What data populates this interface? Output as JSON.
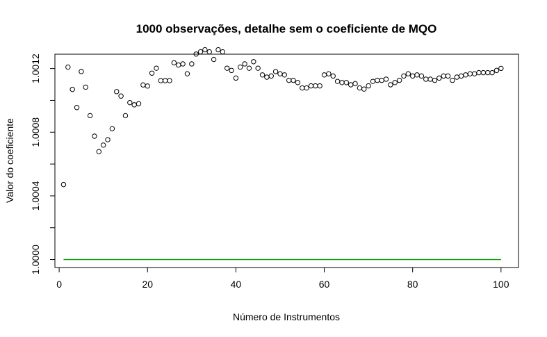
{
  "chart_data": {
    "type": "scatter",
    "title": "1000 observações, detalhe sem o coeficiente de MQO",
    "xlabel": "Número de Instrumentos",
    "ylabel": "Valor do coeficiente",
    "xlim": [
      -0.96,
      103.96
    ],
    "ylim": [
      0.99995,
      1.00129
    ],
    "x_ticks": [
      0,
      20,
      40,
      60,
      80,
      100
    ],
    "x_tick_labels": [
      "0",
      "20",
      "40",
      "60",
      "80",
      "100"
    ],
    "y_ticks": [
      1.0,
      1.0004,
      1.0008,
      1.0012
    ],
    "y_tick_labels": [
      "1.0000",
      "1.0004",
      "1.0008",
      "1.0012"
    ],
    "grid": false,
    "legend": "none",
    "series": [
      {
        "marker": "open-circle",
        "color": "#000000",
        "x": [
          1,
          2,
          3,
          4,
          5,
          6,
          7,
          8,
          9,
          10,
          11,
          12,
          13,
          14,
          15,
          16,
          17,
          18,
          19,
          20,
          21,
          22,
          23,
          24,
          25,
          26,
          27,
          28,
          29,
          30,
          31,
          32,
          33,
          34,
          35,
          36,
          37,
          38,
          39,
          40,
          41,
          42,
          43,
          44,
          45,
          46,
          47,
          48,
          49,
          50,
          51,
          52,
          53,
          54,
          55,
          56,
          57,
          58,
          59,
          60,
          61,
          62,
          63,
          64,
          65,
          66,
          67,
          68,
          69,
          70,
          71,
          72,
          73,
          74,
          75,
          76,
          77,
          78,
          79,
          80,
          81,
          82,
          83,
          84,
          85,
          86,
          87,
          88,
          89,
          90,
          91,
          92,
          93,
          94,
          95,
          96,
          97,
          98,
          99,
          100
        ],
        "y": [
          1.000471,
          1.001209,
          1.001069,
          1.000955,
          1.001181,
          1.001083,
          1.000904,
          1.000775,
          1.000678,
          1.000719,
          1.000753,
          1.000822,
          1.001055,
          1.001027,
          1.000904,
          1.000986,
          1.000972,
          1.000979,
          1.001097,
          1.00109,
          1.001171,
          1.001202,
          1.001124,
          1.001124,
          1.001124,
          1.001236,
          1.001222,
          1.001229,
          1.001167,
          1.001229,
          1.001291,
          1.001305,
          1.001318,
          1.001305,
          1.001257,
          1.001318,
          1.001305,
          1.001202,
          1.001188,
          1.00114,
          1.001209,
          1.001229,
          1.001202,
          1.001243,
          1.001202,
          1.00116,
          1.001146,
          1.001153,
          1.001181,
          1.001167,
          1.00116,
          1.001126,
          1.001126,
          1.001112,
          1.001078,
          1.001078,
          1.001091,
          1.001091,
          1.001091,
          1.00116,
          1.001167,
          1.001153,
          1.001119,
          1.001112,
          1.001112,
          1.001098,
          1.001105,
          1.001078,
          1.001071,
          1.001091,
          1.001119,
          1.001126,
          1.001126,
          1.001133,
          1.001098,
          1.001112,
          1.001126,
          1.001153,
          1.001167,
          1.001153,
          1.00116,
          1.001153,
          1.001133,
          1.001133,
          1.001126,
          1.00114,
          1.001153,
          1.001153,
          1.001126,
          1.001146,
          1.001153,
          1.00116,
          1.001167,
          1.001167,
          1.001174,
          1.001174,
          1.001174,
          1.001174,
          1.001188,
          1.001201
        ]
      },
      {
        "type": "line",
        "color": "#00a000",
        "x": [
          1,
          100
        ],
        "y": [
          1.0,
          1.0
        ]
      }
    ]
  }
}
